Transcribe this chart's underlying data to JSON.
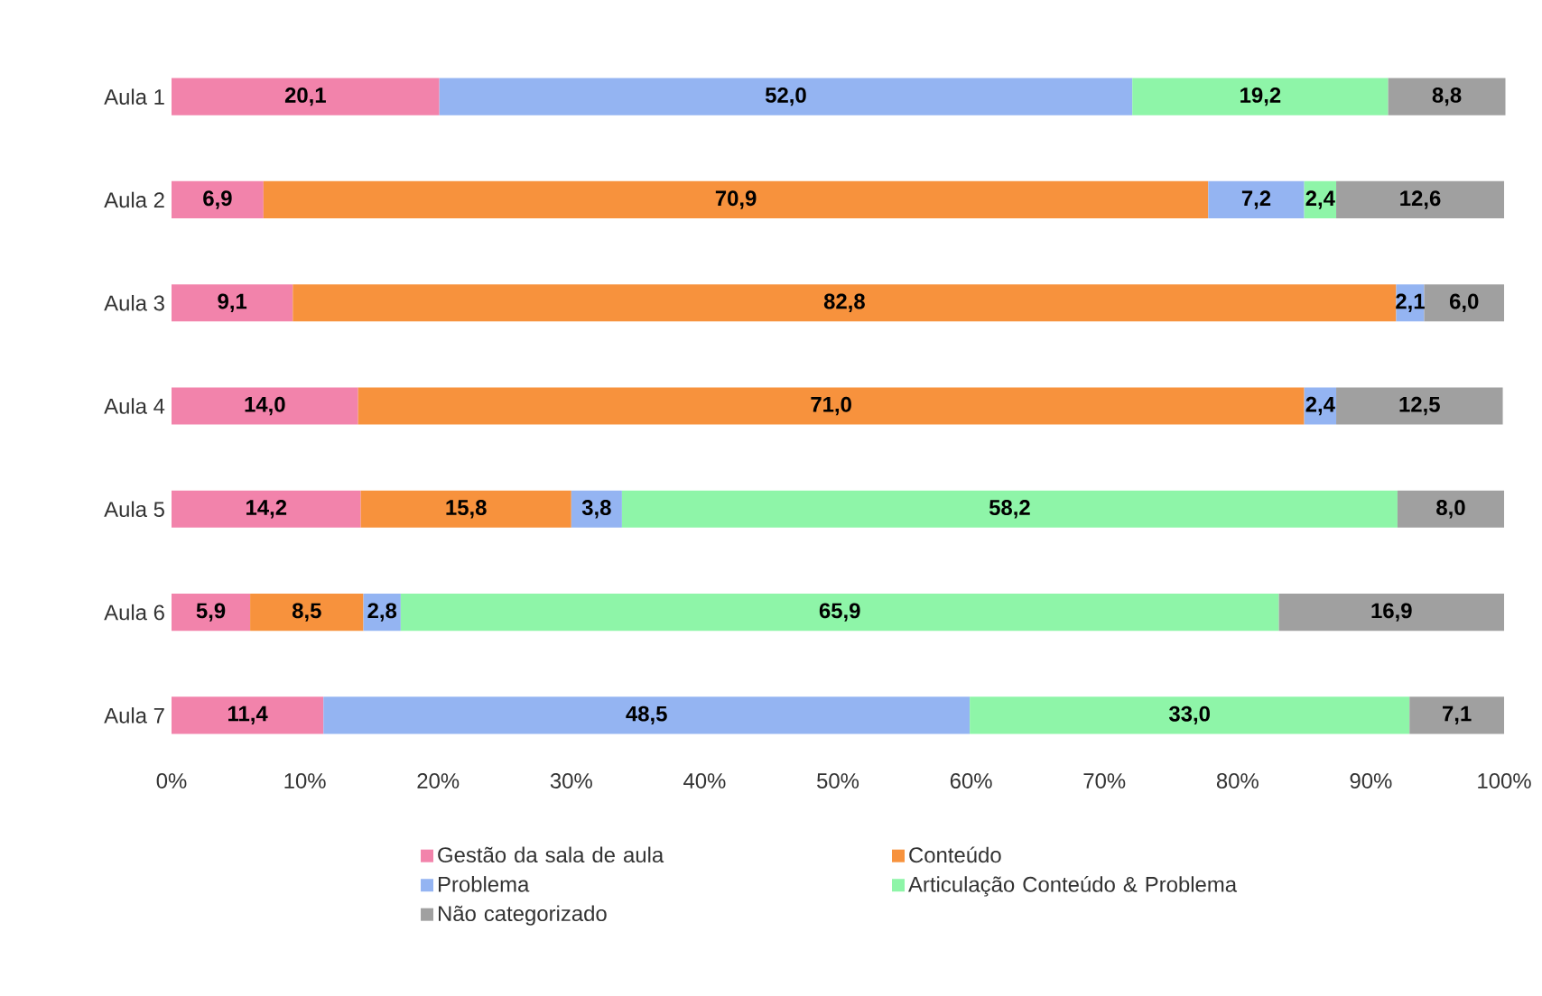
{
  "chart_data": {
    "type": "bar",
    "orientation": "horizontal",
    "stacked": true,
    "categories": [
      "Aula 1",
      "Aula 2",
      "Aula 3",
      "Aula 4",
      "Aula 5",
      "Aula 6",
      "Aula 7"
    ],
    "series": [
      {
        "name": "Gestão da sala de aula",
        "color": "#f283ab",
        "values": [
          20.1,
          6.9,
          9.1,
          14.0,
          14.2,
          5.9,
          11.4
        ],
        "value_labels": [
          "20,1",
          "6,9",
          "9,1",
          "14,0",
          "14,2",
          "5,9",
          "11,4"
        ]
      },
      {
        "name": "Conteúdo",
        "color": "#f7923d",
        "values": [
          null,
          70.9,
          82.8,
          71.0,
          15.8,
          8.5,
          null
        ],
        "value_labels": [
          null,
          "70,9",
          "82,8",
          "71,0",
          "15,8",
          "8,5",
          null
        ]
      },
      {
        "name": "Problema",
        "color": "#94b4f2",
        "values": [
          52.0,
          7.2,
          2.1,
          2.4,
          3.8,
          2.8,
          48.5
        ],
        "value_labels": [
          "52,0",
          "7,2",
          "2,1",
          "2,4",
          "3,8",
          "2,8",
          "48,5"
        ]
      },
      {
        "name": "Articulação Conteúdo & Problema",
        "color": "#8ef5a8",
        "values": [
          19.2,
          2.4,
          null,
          null,
          58.2,
          65.9,
          33.0
        ],
        "value_labels": [
          "19,2",
          "2,4",
          null,
          null,
          "58,2",
          "65,9",
          "33,0"
        ]
      },
      {
        "name": "Não categorizado",
        "color": "#a0a0a0",
        "values": [
          8.8,
          12.6,
          6.0,
          12.5,
          8.0,
          16.9,
          7.1
        ],
        "value_labels": [
          "8,8",
          "12,6",
          "6,0",
          "12,5",
          "8,0",
          "16,9",
          "7,1"
        ]
      }
    ],
    "xlim": [
      0,
      100
    ],
    "xticks": [
      {
        "value": 0,
        "label": "0%"
      },
      {
        "value": 10,
        "label": "10%"
      },
      {
        "value": 20,
        "label": "20%"
      },
      {
        "value": 30,
        "label": "30%"
      },
      {
        "value": 40,
        "label": "40%"
      },
      {
        "value": 50,
        "label": "50%"
      },
      {
        "value": 60,
        "label": "60%"
      },
      {
        "value": 70,
        "label": "70%"
      },
      {
        "value": 80,
        "label": "80%"
      },
      {
        "value": 90,
        "label": "90%"
      },
      {
        "value": 100,
        "label": "100%"
      }
    ],
    "legend": "bottom",
    "grid": false
  }
}
